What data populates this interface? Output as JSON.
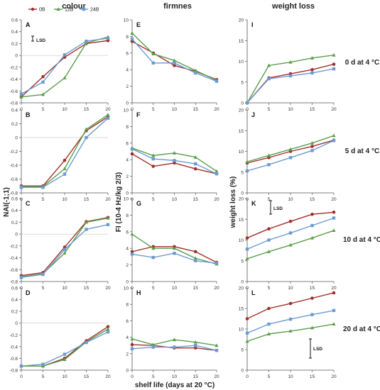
{
  "figure": {
    "column_titles": [
      "colour",
      "firmnes",
      "weight loss"
    ],
    "row_labels": [
      "0 d at 4 °C",
      "5 d at 4 °C",
      "10 d at 4 °C",
      "20 d at 4 °C"
    ],
    "y_labels": [
      "NAI(-1;1)",
      "FI (10-4 Hz/kg 2/3)",
      "weight loss (%)"
    ],
    "x_label": "shelf life (days at 20 °C)",
    "legend": [
      "0B",
      "12B",
      "24B"
    ],
    "lsd_label": "LSD",
    "colors": {
      "0B": "#A0302B",
      "12B": "#5A9E4B",
      "24B": "#6B9BD2"
    }
  },
  "chart_data": [
    {
      "type": "line",
      "panel": "A",
      "x": [
        0,
        5,
        10,
        15,
        20
      ],
      "ylim": [
        -0.8,
        0.6
      ],
      "yticks": [
        -0.8,
        -0.6,
        -0.4,
        -0.2,
        0,
        0.2,
        0.4,
        0.6
      ],
      "series": [
        {
          "name": "0B",
          "values": [
            -0.7,
            -0.36,
            -0.03,
            0.2,
            0.25
          ]
        },
        {
          "name": "12B",
          "values": [
            -0.7,
            -0.66,
            -0.38,
            0.21,
            0.31
          ]
        },
        {
          "name": "24B",
          "values": [
            -0.65,
            -0.45,
            0.01,
            0.24,
            0.29
          ]
        }
      ]
    },
    {
      "type": "line",
      "panel": "B",
      "x": [
        0,
        5,
        10,
        15,
        20
      ],
      "ylim": [
        -0.8,
        0.4
      ],
      "yticks": [
        -0.8,
        -0.6,
        -0.4,
        -0.2,
        0,
        0.2,
        0.4
      ],
      "series": [
        {
          "name": "0B",
          "values": [
            -0.7,
            -0.7,
            -0.33,
            0.1,
            0.3
          ]
        },
        {
          "name": "12B",
          "values": [
            -0.71,
            -0.71,
            -0.45,
            0.12,
            0.33
          ]
        },
        {
          "name": "24B",
          "values": [
            -0.72,
            -0.72,
            -0.53,
            0.0,
            0.28
          ]
        }
      ]
    },
    {
      "type": "line",
      "panel": "C",
      "x": [
        0,
        5,
        10,
        15,
        20
      ],
      "ylim": [
        -0.8,
        0.6
      ],
      "yticks": [
        -0.8,
        -0.6,
        -0.4,
        -0.2,
        0,
        0.2,
        0.4,
        0.6
      ],
      "series": [
        {
          "name": "0B",
          "values": [
            -0.7,
            -0.65,
            -0.22,
            0.21,
            0.28
          ]
        },
        {
          "name": "12B",
          "values": [
            -0.72,
            -0.67,
            -0.32,
            0.2,
            0.27
          ]
        },
        {
          "name": "24B",
          "values": [
            -0.73,
            -0.68,
            -0.26,
            0.08,
            0.16
          ]
        }
      ]
    },
    {
      "type": "line",
      "panel": "D",
      "x": [
        0,
        5,
        10,
        15,
        20
      ],
      "ylim": [
        -0.8,
        0.6
      ],
      "yticks": [
        -0.8,
        -0.6,
        -0.4,
        -0.2,
        0,
        0.2,
        0.4,
        0.6
      ],
      "series": [
        {
          "name": "0B",
          "values": [
            -0.73,
            -0.73,
            -0.6,
            -0.3,
            -0.06
          ]
        },
        {
          "name": "12B",
          "values": [
            -0.73,
            -0.73,
            -0.62,
            -0.32,
            -0.1
          ]
        },
        {
          "name": "24B",
          "values": [
            -0.73,
            -0.7,
            -0.53,
            -0.33,
            -0.15
          ]
        }
      ]
    },
    {
      "type": "line",
      "panel": "E",
      "x": [
        0,
        5,
        10,
        15,
        20
      ],
      "ylim": [
        0,
        10
      ],
      "yticks": [
        0,
        2,
        4,
        6,
        8,
        10
      ],
      "series": [
        {
          "name": "0B",
          "values": [
            7.4,
            6.0,
            4.5,
            3.8,
            2.8
          ]
        },
        {
          "name": "12B",
          "values": [
            8.4,
            5.9,
            5.1,
            3.9,
            2.7
          ]
        },
        {
          "name": "24B",
          "values": [
            7.7,
            4.8,
            4.8,
            3.6,
            2.6
          ]
        }
      ]
    },
    {
      "type": "line",
      "panel": "F",
      "x": [
        0,
        5,
        10,
        15,
        20
      ],
      "ylim": [
        0,
        10
      ],
      "yticks": [
        0,
        2,
        4,
        6,
        8,
        10
      ],
      "series": [
        {
          "name": "0B",
          "values": [
            4.7,
            3.2,
            3.6,
            2.9,
            2.3
          ]
        },
        {
          "name": "12B",
          "values": [
            5.4,
            4.5,
            4.8,
            4.3,
            2.6
          ]
        },
        {
          "name": "24B",
          "values": [
            5.3,
            4.1,
            3.9,
            3.5,
            2.3
          ]
        }
      ]
    },
    {
      "type": "line",
      "panel": "G",
      "x": [
        0,
        5,
        10,
        15,
        20
      ],
      "ylim": [
        0,
        10
      ],
      "yticks": [
        0,
        2,
        4,
        6,
        8,
        10
      ],
      "series": [
        {
          "name": "0B",
          "values": [
            3.6,
            4.2,
            4.2,
            3.6,
            2.3
          ]
        },
        {
          "name": "12B",
          "values": [
            5.7,
            4.0,
            4.0,
            2.8,
            2.1
          ]
        },
        {
          "name": "24B",
          "values": [
            3.3,
            2.9,
            3.4,
            2.5,
            2.2
          ]
        }
      ]
    },
    {
      "type": "line",
      "panel": "H",
      "x": [
        0,
        5,
        10,
        15,
        20
      ],
      "ylim": [
        0,
        10
      ],
      "yticks": [
        0,
        2,
        4,
        6,
        8,
        10
      ],
      "series": [
        {
          "name": "0B",
          "values": [
            3.1,
            3.0,
            2.7,
            2.7,
            2.4
          ]
        },
        {
          "name": "12B",
          "values": [
            3.8,
            3.1,
            3.7,
            3.4,
            3.0
          ]
        },
        {
          "name": "24B",
          "values": [
            2.6,
            2.8,
            2.8,
            3.0,
            2.4
          ]
        }
      ]
    },
    {
      "type": "line",
      "panel": "I",
      "x": [
        0,
        5,
        10,
        15,
        20
      ],
      "ylim": [
        0,
        20
      ],
      "yticks": [
        0,
        5,
        10,
        15,
        20
      ],
      "series": [
        {
          "name": "0B",
          "values": [
            0,
            6.0,
            7.0,
            8.0,
            9.3
          ]
        },
        {
          "name": "12B",
          "values": [
            0,
            9.0,
            9.8,
            10.8,
            11.5
          ]
        },
        {
          "name": "24B",
          "values": [
            0,
            5.8,
            6.5,
            7.2,
            8.2
          ]
        }
      ]
    },
    {
      "type": "line",
      "panel": "J",
      "x": [
        0,
        5,
        10,
        15,
        20
      ],
      "ylim": [
        0,
        20
      ],
      "yticks": [
        0,
        5,
        10,
        15,
        20
      ],
      "series": [
        {
          "name": "0B",
          "values": [
            7.2,
            8.5,
            10.0,
            11.2,
            12.7
          ]
        },
        {
          "name": "12B",
          "values": [
            7.5,
            9.0,
            10.5,
            12.0,
            13.8
          ]
        },
        {
          "name": "24B",
          "values": [
            5.3,
            6.8,
            8.5,
            10.2,
            12.6
          ]
        }
      ]
    },
    {
      "type": "line",
      "panel": "K",
      "x": [
        0,
        5,
        10,
        15,
        20
      ],
      "ylim": [
        0,
        20
      ],
      "yticks": [
        0,
        5,
        10,
        15,
        20
      ],
      "series": [
        {
          "name": "0B",
          "values": [
            10.5,
            12.7,
            14.5,
            16.2,
            16.7
          ]
        },
        {
          "name": "12B",
          "values": [
            5.5,
            7.2,
            8.8,
            10.5,
            12.3
          ]
        },
        {
          "name": "24B",
          "values": [
            7.8,
            10.0,
            11.7,
            13.5,
            15.3
          ]
        }
      ]
    },
    {
      "type": "line",
      "panel": "L",
      "x": [
        0,
        5,
        10,
        15,
        20
      ],
      "ylim": [
        0,
        20
      ],
      "yticks": [
        0,
        5,
        10,
        15,
        20
      ],
      "series": [
        {
          "name": "0B",
          "values": [
            12.5,
            15.0,
            16.2,
            17.5,
            18.8
          ]
        },
        {
          "name": "12B",
          "values": [
            7.0,
            8.8,
            9.5,
            10.3,
            11.2
          ]
        },
        {
          "name": "24B",
          "values": [
            9.0,
            11.2,
            12.4,
            13.5,
            14.5
          ]
        }
      ]
    }
  ]
}
